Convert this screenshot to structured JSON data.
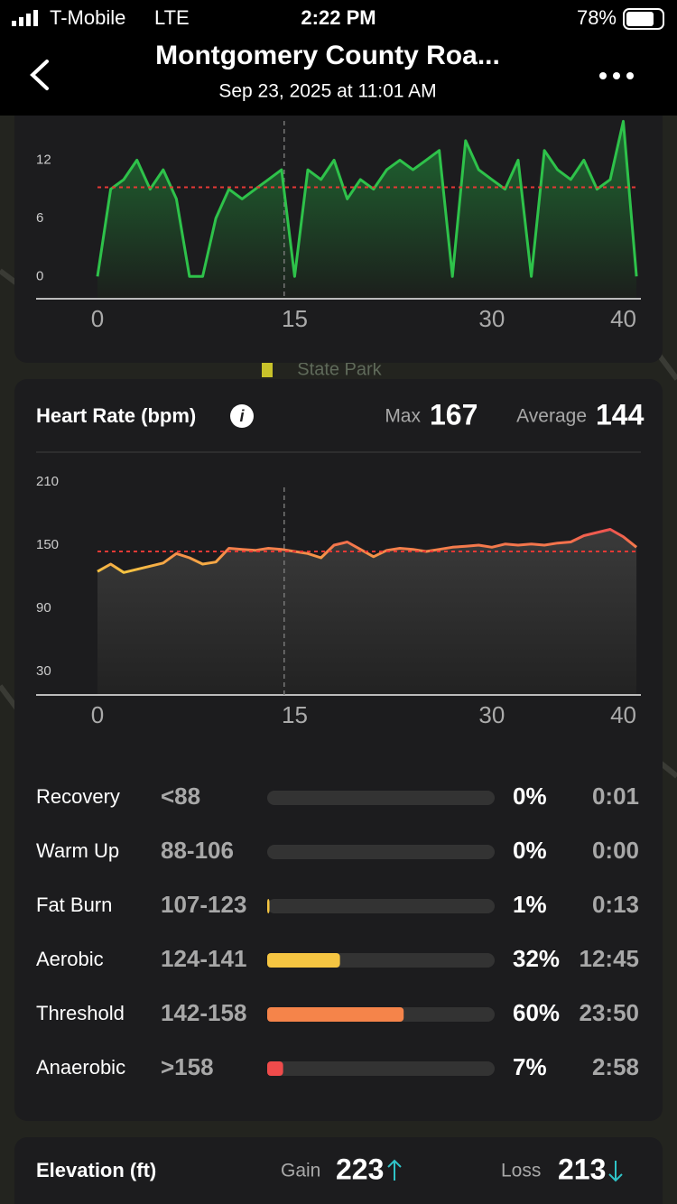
{
  "status_bar": {
    "carrier": "T-Mobile",
    "network": "LTE",
    "time": "2:22 PM",
    "battery": "78%"
  },
  "header": {
    "title": "Montgomery County Roa...",
    "subtitle": "Sep 23, 2025 at 11:01 AM"
  },
  "map_label": "State Park",
  "chart_data": [
    {
      "type": "line",
      "color": "#2ec24a",
      "x": [
        0,
        1,
        2,
        3,
        4,
        5,
        6,
        7,
        8,
        9,
        10,
        11,
        12,
        13,
        14,
        15,
        16,
        17,
        18,
        19,
        20,
        21,
        22,
        23,
        24,
        25,
        26,
        27,
        28,
        29,
        30,
        31,
        32,
        33,
        34,
        35,
        36,
        37,
        38,
        39,
        40,
        41
      ],
      "values": [
        0,
        9,
        10,
        12,
        9,
        11,
        8,
        0,
        0,
        6,
        9,
        8,
        9,
        10,
        11,
        0,
        11,
        10,
        12,
        8,
        10,
        9,
        11,
        12,
        11,
        12,
        13,
        0,
        14,
        11,
        10,
        9,
        12,
        0,
        13,
        11,
        10,
        12,
        9,
        10,
        16,
        0
      ],
      "average": 9.2,
      "marker_x": 14.2,
      "xlim": [
        0,
        41.2
      ],
      "xticks": [
        0,
        15,
        30,
        40
      ],
      "ylim": [
        -2.3,
        16.6
      ],
      "yticks": [
        0,
        6,
        12
      ]
    },
    {
      "type": "line",
      "colors": [
        "#f5c542",
        "#f5844a",
        "#ef5350"
      ],
      "x": [
        0,
        1,
        2,
        3,
        4,
        5,
        6,
        7,
        8,
        9,
        10,
        11,
        12,
        13,
        14,
        15,
        16,
        17,
        18,
        19,
        20,
        21,
        22,
        23,
        24,
        25,
        26,
        27,
        28,
        29,
        30,
        31,
        32,
        33,
        34,
        35,
        36,
        37,
        38,
        39,
        40,
        41
      ],
      "values": [
        125,
        132,
        124,
        127,
        130,
        133,
        142,
        138,
        132,
        134,
        147,
        146,
        145,
        147,
        146,
        144,
        142,
        138,
        150,
        153,
        146,
        139,
        145,
        147,
        146,
        144,
        146,
        148,
        149,
        150,
        148,
        151,
        150,
        151,
        150,
        152,
        153,
        159,
        162,
        165,
        158,
        148
      ],
      "average": 144,
      "marker_x": 14.2,
      "xlim": [
        0,
        41.2
      ],
      "xticks": [
        0,
        15,
        30,
        40
      ],
      "ylim": [
        7.7,
        210
      ],
      "yticks": [
        30,
        90,
        150,
        210
      ]
    }
  ],
  "heart_rate": {
    "title": "Heart Rate (bpm)",
    "max_label": "Max",
    "max": 167,
    "average_label": "Average",
    "average": 144,
    "zones": [
      {
        "name": "Recovery",
        "range": "<88",
        "percent": 0,
        "percent_label": "0%",
        "time": "0:01",
        "color": "#4aa3df"
      },
      {
        "name": "Warm Up",
        "range": "88-106",
        "percent": 0,
        "percent_label": "0%",
        "time": "0:00",
        "color": "#6cc070"
      },
      {
        "name": "Fat Burn",
        "range": "107-123",
        "percent": 1,
        "percent_label": "1%",
        "time": "0:13",
        "color": "#f5c542"
      },
      {
        "name": "Aerobic",
        "range": "124-141",
        "percent": 32,
        "percent_label": "32%",
        "time": "12:45",
        "color": "#f5c542"
      },
      {
        "name": "Threshold",
        "range": "142-158",
        "percent": 60,
        "percent_label": "60%",
        "time": "23:50",
        "color": "#f5844a"
      },
      {
        "name": "Anaerobic",
        "range": ">158",
        "percent": 7,
        "percent_label": "7%",
        "time": "2:58",
        "color": "#ef4b4b"
      }
    ]
  },
  "elevation": {
    "title": "Elevation (ft)",
    "gain_label": "Gain",
    "gain": 223,
    "loss_label": "Loss",
    "loss": 213
  }
}
